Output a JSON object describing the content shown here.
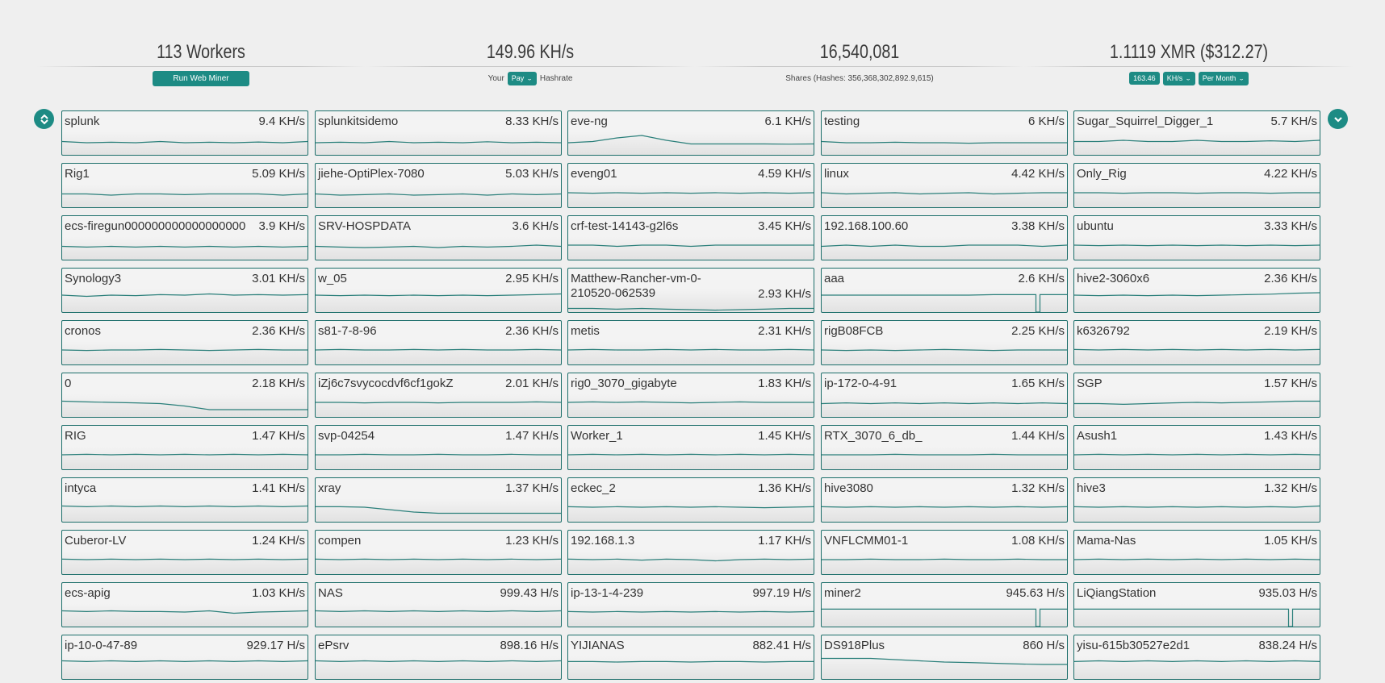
{
  "stats": {
    "workers": "113 Workers",
    "web_miner_label": "Run Web Miner",
    "hashrate": "149.96 KH/s",
    "your_label": "Your",
    "pay_select": "Pay",
    "hashrate_label": "Hashrate",
    "shares": "16,540,081",
    "shares_sub": "Shares (Hashes: 356,368,302,892.9,615)",
    "earnings": "1.1119 XMR ($312.27)",
    "calc_value": "163.46",
    "unit_select": "KH/s",
    "period_select": "Per Month"
  },
  "colors": {
    "accent": "#1d8b84",
    "border": "#1d6f6b",
    "spark": "#2a7f7a"
  },
  "icons": {
    "left_nav": "collapse-expand-icon",
    "right_nav": "chevron-down-icon"
  },
  "workers": [
    {
      "name": "splunk",
      "rate": "9.4 KH/s",
      "trend": [
        0.55,
        0.5,
        0.52,
        0.5,
        0.55,
        0.5,
        0.52,
        0.5,
        0.53,
        0.5,
        0.55
      ]
    },
    {
      "name": "splunkitsidemo",
      "rate": "8.33 KH/s",
      "trend": [
        0.5,
        0.52,
        0.5,
        0.55,
        0.5,
        0.52,
        0.5,
        0.54,
        0.5,
        0.52,
        0.5
      ]
    },
    {
      "name": "eve-ng",
      "rate": "6.1 KH/s",
      "trend": [
        0.5,
        0.55,
        0.7,
        0.8,
        0.6,
        0.45,
        0.45,
        0.45,
        0.45,
        0.44,
        0.45
      ]
    },
    {
      "name": "testing",
      "rate": "6 KH/s",
      "trend": [
        0.55,
        0.5,
        0.5,
        0.52,
        0.5,
        0.5,
        0.48,
        0.5,
        0.5,
        0.5,
        0.5
      ]
    },
    {
      "name": "Sugar_Squirrel_Digger_1",
      "rate": "5.7 KH/s",
      "trend": [
        0.55,
        0.55,
        0.6,
        0.55,
        0.55,
        0.6,
        0.55,
        0.55,
        0.58,
        0.55,
        0.6
      ]
    },
    {
      "name": "Rig1",
      "rate": "5.09 KH/s",
      "trend": [
        0.55,
        0.55,
        0.5,
        0.55,
        0.55,
        0.52,
        0.55,
        0.55,
        0.55,
        0.5,
        0.55
      ]
    },
    {
      "name": "jiehe-OptiPlex-7080",
      "rate": "5.03 KH/s",
      "trend": [
        0.55,
        0.5,
        0.52,
        0.55,
        0.5,
        0.52,
        0.55,
        0.5,
        0.55,
        0.52,
        0.55
      ]
    },
    {
      "name": "eveng01",
      "rate": "4.59 KH/s",
      "trend": [
        0.6,
        0.58,
        0.6,
        0.58,
        0.6,
        0.58,
        0.6,
        0.58,
        0.6,
        0.58,
        0.6
      ]
    },
    {
      "name": "linux",
      "rate": "4.42 KH/s",
      "trend": [
        0.6,
        0.55,
        0.58,
        0.6,
        0.55,
        0.58,
        0.6,
        0.55,
        0.58,
        0.6,
        0.6
      ]
    },
    {
      "name": "Only_Rig",
      "rate": "4.22 KH/s",
      "trend": [
        0.6,
        0.6,
        0.58,
        0.6,
        0.6,
        0.58,
        0.6,
        0.6,
        0.58,
        0.6,
        0.6
      ]
    },
    {
      "name": "ecs-firegun000000000000000000",
      "rate": "3.9 KH/s",
      "trend": [
        0.55,
        0.52,
        0.55,
        0.52,
        0.55,
        0.52,
        0.55,
        0.52,
        0.55,
        0.52,
        0.55
      ]
    },
    {
      "name": "SRV-HOSPDATA",
      "rate": "3.6 KH/s",
      "trend": [
        0.55,
        0.52,
        0.5,
        0.52,
        0.55,
        0.5,
        0.55,
        0.52,
        0.55,
        0.6,
        0.55
      ]
    },
    {
      "name": "crf-test-14143-g2l6s",
      "rate": "3.45 KH/s",
      "trend": [
        0.6,
        0.6,
        0.55,
        0.6,
        0.6,
        0.55,
        0.6,
        0.6,
        0.6,
        0.6,
        0.6
      ]
    },
    {
      "name": "192.168.100.60",
      "rate": "3.38 KH/s",
      "trend": [
        0.55,
        0.6,
        0.55,
        0.6,
        0.55,
        0.55,
        0.6,
        0.6,
        0.6,
        0.55,
        0.6
      ]
    },
    {
      "name": "ubuntu",
      "rate": "3.33 KH/s",
      "trend": [
        0.6,
        0.58,
        0.6,
        0.58,
        0.6,
        0.58,
        0.6,
        0.58,
        0.6,
        0.58,
        0.6
      ]
    },
    {
      "name": "Synology3",
      "rate": "3.01 KH/s",
      "trend": [
        0.7,
        0.65,
        0.7,
        0.68,
        0.72,
        0.7,
        0.75,
        0.7,
        0.72,
        0.7,
        0.72
      ]
    },
    {
      "name": "w_05",
      "rate": "2.95 KH/s",
      "trend": [
        0.7,
        0.68,
        0.7,
        0.68,
        0.7,
        0.68,
        0.7,
        0.68,
        0.7,
        0.72,
        0.75
      ]
    },
    {
      "name": "Matthew-Rancher-vm-0-210520-062539",
      "rate": "2.93 KH/s",
      "wrap": true,
      "trend": [
        0.15,
        0.15,
        0.12,
        0.15,
        0.12,
        0.1,
        0.08,
        0.1,
        0.12,
        0.15,
        0.15
      ]
    },
    {
      "name": "aaa",
      "rate": "2.6 KH/s",
      "dip": 0.88,
      "trend": [
        0.7,
        0.7,
        0.7,
        0.7,
        0.7,
        0.7,
        0.7,
        0.72,
        0.72,
        0.72,
        0.72
      ]
    },
    {
      "name": "hive2-3060x6",
      "rate": "2.36 KH/s",
      "trend": [
        0.7,
        0.68,
        0.7,
        0.68,
        0.7,
        0.68,
        0.7,
        0.72,
        0.74,
        0.78,
        0.8
      ]
    },
    {
      "name": "cronos",
      "rate": "2.36 KH/s",
      "trend": [
        0.6,
        0.58,
        0.6,
        0.6,
        0.62,
        0.6,
        0.58,
        0.6,
        0.62,
        0.6,
        0.6
      ]
    },
    {
      "name": "s81-7-8-96",
      "rate": "2.36 KH/s",
      "trend": [
        0.6,
        0.62,
        0.6,
        0.6,
        0.62,
        0.6,
        0.62,
        0.6,
        0.6,
        0.62,
        0.6
      ]
    },
    {
      "name": "metis",
      "rate": "2.31 KH/s",
      "trend": [
        0.6,
        0.62,
        0.6,
        0.6,
        0.62,
        0.6,
        0.62,
        0.6,
        0.6,
        0.62,
        0.6
      ]
    },
    {
      "name": "rigB08FCB",
      "rate": "2.25 KH/s",
      "trend": [
        0.6,
        0.58,
        0.6,
        0.58,
        0.6,
        0.62,
        0.6,
        0.58,
        0.6,
        0.6,
        0.6
      ]
    },
    {
      "name": "k6326792",
      "rate": "2.19 KH/s",
      "trend": [
        0.62,
        0.6,
        0.62,
        0.6,
        0.62,
        0.6,
        0.62,
        0.6,
        0.62,
        0.6,
        0.62
      ]
    },
    {
      "name": "0",
      "rate": "2.18 KH/s",
      "trend": [
        0.65,
        0.62,
        0.6,
        0.58,
        0.55,
        0.45,
        0.3,
        0.3,
        0.3,
        0.3,
        0.3
      ]
    },
    {
      "name": "iZj6c7svycocdvf6cf1gokZ",
      "rate": "2.01 KH/s",
      "trend": [
        0.6,
        0.6,
        0.58,
        0.6,
        0.6,
        0.58,
        0.6,
        0.6,
        0.6,
        0.62,
        0.6
      ]
    },
    {
      "name": "rig0_3070_gigabyte",
      "rate": "1.83 KH/s",
      "trend": [
        0.6,
        0.62,
        0.6,
        0.62,
        0.6,
        0.58,
        0.6,
        0.62,
        0.6,
        0.6,
        0.6
      ]
    },
    {
      "name": "ip-172-0-4-91",
      "rate": "1.65 KH/s",
      "trend": [
        0.55,
        0.58,
        0.55,
        0.58,
        0.55,
        0.58,
        0.55,
        0.58,
        0.55,
        0.58,
        0.55
      ]
    },
    {
      "name": "SGP",
      "rate": "1.57 KH/s",
      "trend": [
        0.55,
        0.55,
        0.52,
        0.55,
        0.58,
        0.6,
        0.58,
        0.6,
        0.62,
        0.65,
        0.65
      ]
    },
    {
      "name": "RIG",
      "rate": "1.47 KH/s",
      "trend": [
        0.6,
        0.62,
        0.6,
        0.62,
        0.6,
        0.62,
        0.6,
        0.62,
        0.6,
        0.62,
        0.6
      ]
    },
    {
      "name": "svp-04254",
      "rate": "1.47 KH/s",
      "trend": [
        0.6,
        0.6,
        0.62,
        0.6,
        0.6,
        0.62,
        0.6,
        0.6,
        0.62,
        0.6,
        0.6
      ]
    },
    {
      "name": "Worker_1",
      "rate": "1.45 KH/s",
      "trend": [
        0.6,
        0.62,
        0.6,
        0.62,
        0.6,
        0.62,
        0.6,
        0.62,
        0.6,
        0.62,
        0.6
      ]
    },
    {
      "name": "RTX_3070_6_db_",
      "rate": "1.44 KH/s",
      "trend": [
        0.6,
        0.6,
        0.6,
        0.62,
        0.6,
        0.6,
        0.6,
        0.62,
        0.6,
        0.6,
        0.6
      ]
    },
    {
      "name": "Asush1",
      "rate": "1.43 KH/s",
      "trend": [
        0.6,
        0.62,
        0.6,
        0.62,
        0.6,
        0.62,
        0.6,
        0.62,
        0.6,
        0.62,
        0.6
      ]
    },
    {
      "name": "intyca",
      "rate": "1.41 KH/s",
      "trend": [
        0.65,
        0.62,
        0.65,
        0.62,
        0.65,
        0.62,
        0.65,
        0.62,
        0.65,
        0.62,
        0.65
      ]
    },
    {
      "name": "xray",
      "rate": "1.37 KH/s",
      "trend": [
        0.62,
        0.62,
        0.6,
        0.5,
        0.4,
        0.35,
        0.35,
        0.35,
        0.35,
        0.35,
        0.35
      ]
    },
    {
      "name": "eckec_2",
      "rate": "1.36 KH/s",
      "trend": [
        0.62,
        0.6,
        0.62,
        0.6,
        0.62,
        0.6,
        0.62,
        0.6,
        0.58,
        0.6,
        0.62
      ]
    },
    {
      "name": "hive3080",
      "rate": "1.32 KH/s",
      "trend": [
        0.62,
        0.6,
        0.62,
        0.6,
        0.62,
        0.6,
        0.62,
        0.6,
        0.62,
        0.6,
        0.62
      ]
    },
    {
      "name": "hive3",
      "rate": "1.32 KH/s",
      "trend": [
        0.62,
        0.6,
        0.62,
        0.6,
        0.62,
        0.6,
        0.62,
        0.6,
        0.62,
        0.6,
        0.65
      ]
    },
    {
      "name": "Cuberor-LV",
      "rate": "1.24 KH/s",
      "trend": [
        0.62,
        0.6,
        0.62,
        0.6,
        0.62,
        0.6,
        0.62,
        0.6,
        0.62,
        0.6,
        0.62
      ]
    },
    {
      "name": "compen",
      "rate": "1.23 KH/s",
      "trend": [
        0.62,
        0.6,
        0.62,
        0.6,
        0.62,
        0.6,
        0.62,
        0.6,
        0.62,
        0.6,
        0.62
      ]
    },
    {
      "name": "192.168.1.3",
      "rate": "1.17 KH/s",
      "trend": [
        0.62,
        0.6,
        0.62,
        0.58,
        0.62,
        0.6,
        0.55,
        0.6,
        0.62,
        0.6,
        0.62
      ]
    },
    {
      "name": "VNFLCMM01-1",
      "rate": "1.08 KH/s",
      "trend": [
        0.6,
        0.6,
        0.62,
        0.6,
        0.6,
        0.62,
        0.6,
        0.6,
        0.62,
        0.6,
        0.6
      ]
    },
    {
      "name": "Mama-Nas",
      "rate": "1.05 KH/s",
      "trend": [
        0.6,
        0.62,
        0.6,
        0.62,
        0.6,
        0.62,
        0.6,
        0.62,
        0.6,
        0.62,
        0.6
      ]
    },
    {
      "name": "ecs-apig",
      "rate": "1.03 KH/s",
      "trend": [
        0.65,
        0.62,
        0.65,
        0.62,
        0.62,
        0.6,
        0.65,
        0.55,
        0.6,
        0.62,
        0.65
      ]
    },
    {
      "name": "NAS",
      "rate": "999.43 H/s",
      "trend": [
        0.65,
        0.62,
        0.65,
        0.62,
        0.65,
        0.62,
        0.65,
        0.62,
        0.65,
        0.62,
        0.65
      ]
    },
    {
      "name": "ip-13-1-4-239",
      "rate": "997.19 H/s",
      "trend": [
        0.62,
        0.6,
        0.62,
        0.6,
        0.62,
        0.6,
        0.62,
        0.6,
        0.62,
        0.6,
        0.62
      ]
    },
    {
      "name": "miner2",
      "rate": "945.63 H/s",
      "dip": 0.88,
      "trend": [
        0.72,
        0.72,
        0.72,
        0.72,
        0.72,
        0.72,
        0.72,
        0.72,
        0.72,
        0.72,
        0.72
      ]
    },
    {
      "name": "LiQiangStation",
      "rate": "935.03 H/s",
      "dip": 0.88,
      "trend": [
        0.72,
        0.72,
        0.72,
        0.72,
        0.72,
        0.72,
        0.72,
        0.72,
        0.72,
        0.72,
        0.72
      ]
    },
    {
      "name": "ip-10-0-47-89",
      "rate": "929.17 H/s",
      "trend": [
        0.75,
        0.72,
        0.75,
        0.72,
        0.75,
        0.72,
        0.75,
        0.72,
        0.75,
        0.72,
        0.75
      ]
    },
    {
      "name": "ePsrv",
      "rate": "898.16 H/s",
      "trend": [
        0.75,
        0.72,
        0.75,
        0.72,
        0.75,
        0.72,
        0.75,
        0.72,
        0.75,
        0.72,
        0.75
      ]
    },
    {
      "name": "YIJIANAS",
      "rate": "882.41 H/s",
      "trend": [
        0.72,
        0.72,
        0.7,
        0.72,
        0.72,
        0.7,
        0.72,
        0.72,
        0.7,
        0.72,
        0.72
      ]
    },
    {
      "name": "DS918Plus",
      "rate": "860 H/s",
      "trend": [
        0.85,
        0.85,
        0.85,
        0.8,
        0.75,
        0.7,
        0.68,
        0.65,
        0.62,
        0.6,
        0.6
      ]
    },
    {
      "name": "yisu-615b30527e2d1",
      "rate": "838.24 H/s",
      "trend": [
        0.72,
        0.75,
        0.72,
        0.75,
        0.72,
        0.75,
        0.72,
        0.75,
        0.72,
        0.75,
        0.72
      ]
    }
  ]
}
